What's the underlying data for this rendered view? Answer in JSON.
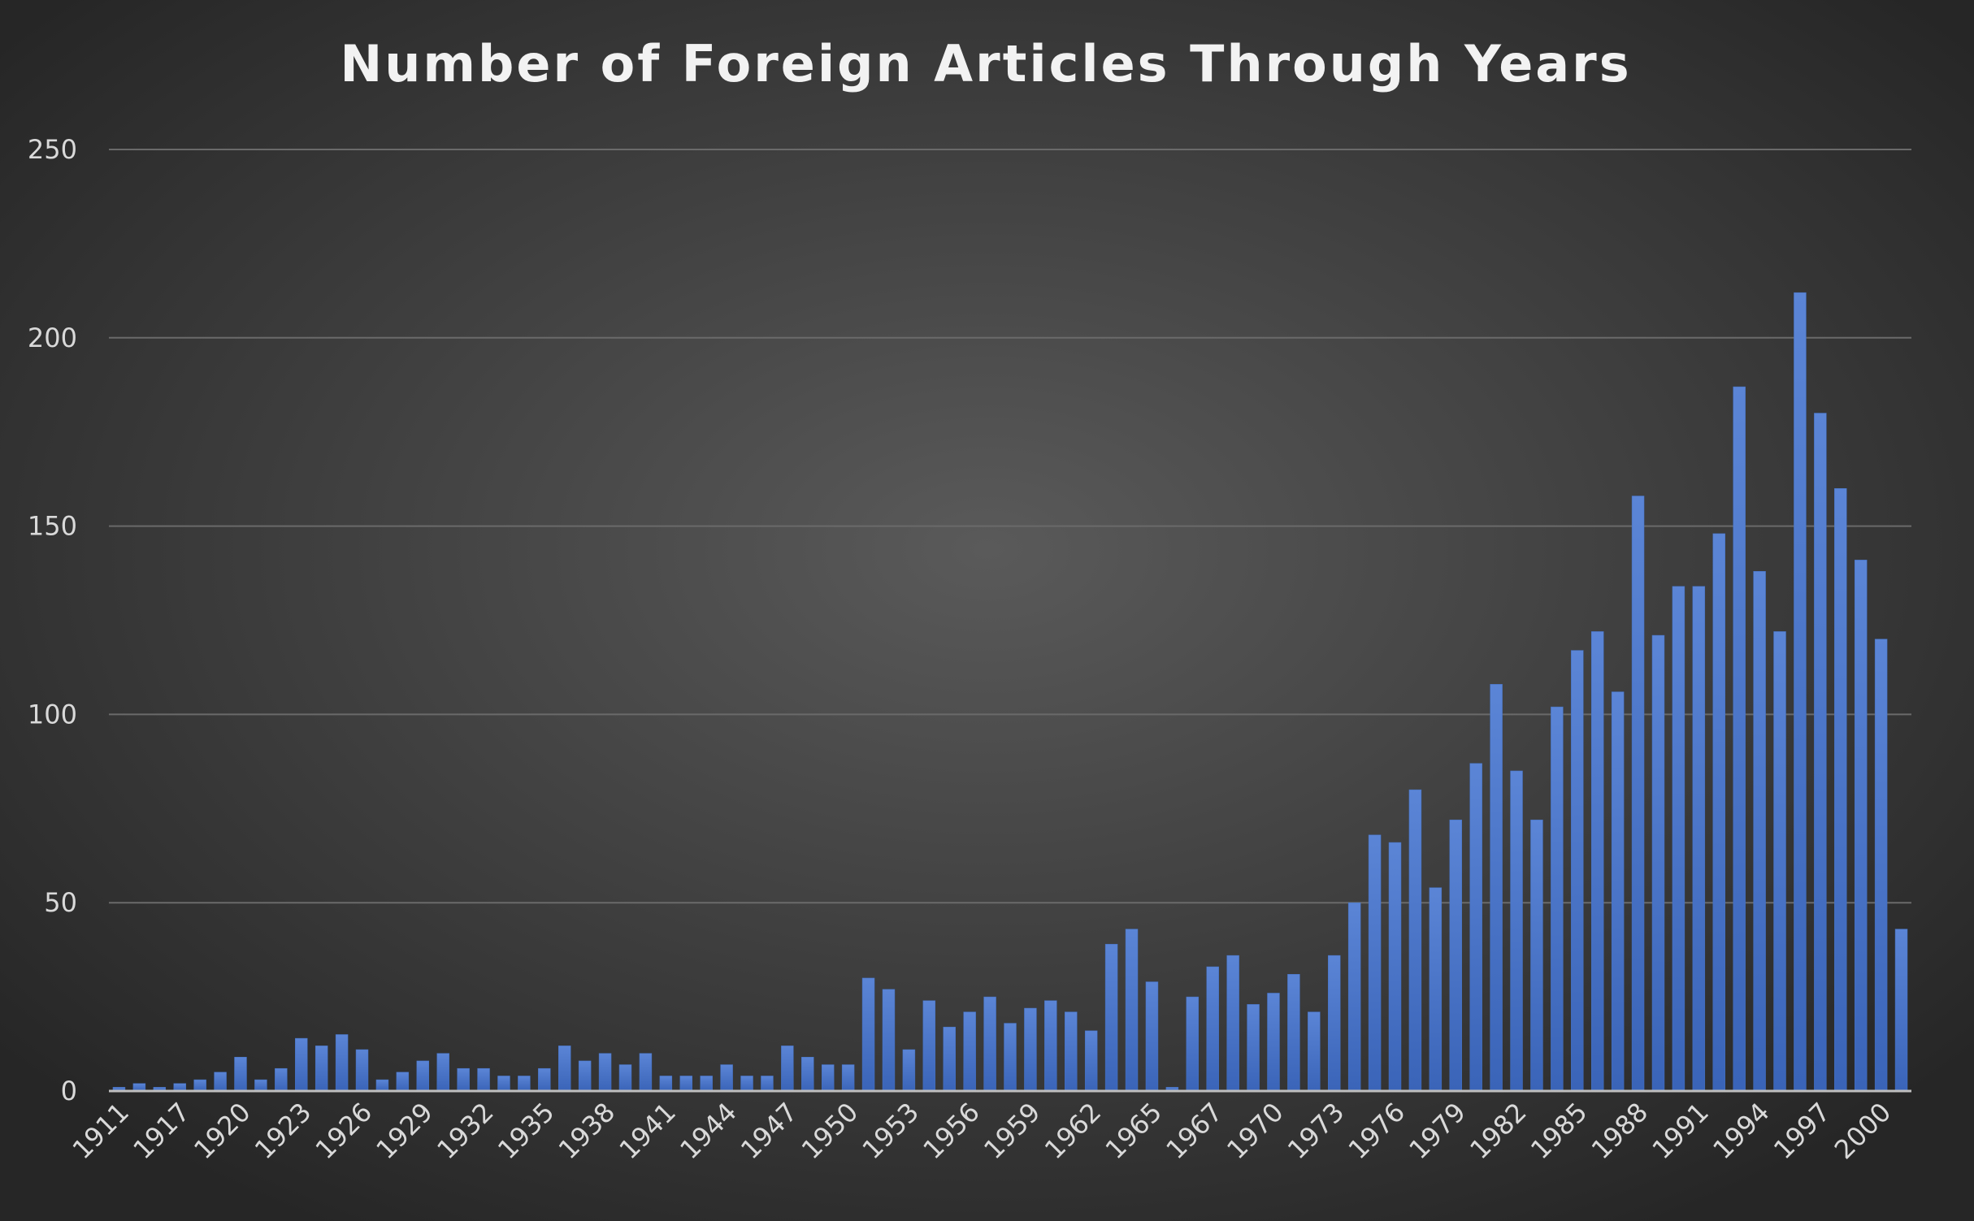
{
  "chart_data": {
    "type": "bar",
    "title": "Number of Foreign Articles Through Years",
    "categories": [
      "1911",
      null,
      null,
      "1917",
      null,
      null,
      "1920",
      null,
      null,
      "1923",
      null,
      null,
      "1926",
      null,
      null,
      "1929",
      null,
      null,
      "1932",
      null,
      null,
      "1935",
      null,
      null,
      "1938",
      null,
      null,
      "1941",
      null,
      null,
      "1944",
      null,
      null,
      "1947",
      null,
      null,
      "1950",
      null,
      null,
      "1953",
      null,
      null,
      "1956",
      null,
      null,
      "1959",
      null,
      null,
      "1962",
      null,
      null,
      "1965",
      null,
      null,
      "1967",
      null,
      null,
      "1970",
      null,
      null,
      "1973",
      null,
      null,
      "1976",
      null,
      null,
      "1979",
      null,
      null,
      "1982",
      null,
      null,
      "1985",
      null,
      null,
      "1988",
      null,
      null,
      "1991",
      null,
      null,
      "1994",
      null,
      null,
      "1997",
      null,
      null,
      "2000",
      null
    ],
    "values": [
      1,
      2,
      1,
      2,
      3,
      5,
      9,
      3,
      6,
      14,
      12,
      15,
      11,
      3,
      5,
      8,
      10,
      6,
      6,
      4,
      4,
      6,
      12,
      8,
      10,
      7,
      10,
      4,
      4,
      4,
      7,
      4,
      4,
      12,
      9,
      7,
      7,
      30,
      27,
      11,
      24,
      17,
      21,
      25,
      18,
      22,
      24,
      21,
      16,
      39,
      43,
      29,
      1,
      25,
      33,
      36,
      23,
      26,
      31,
      21,
      36,
      50,
      68,
      66,
      80,
      54,
      72,
      87,
      108,
      85,
      72,
      102,
      117,
      122,
      106,
      158,
      121,
      134,
      134,
      148,
      187,
      138,
      122,
      212,
      180,
      160,
      141,
      120,
      43
    ],
    "color": "#4472c4",
    "ylim": [
      0,
      250
    ],
    "yticks": [
      0,
      50,
      100,
      150,
      200,
      250
    ],
    "grid": true
  }
}
